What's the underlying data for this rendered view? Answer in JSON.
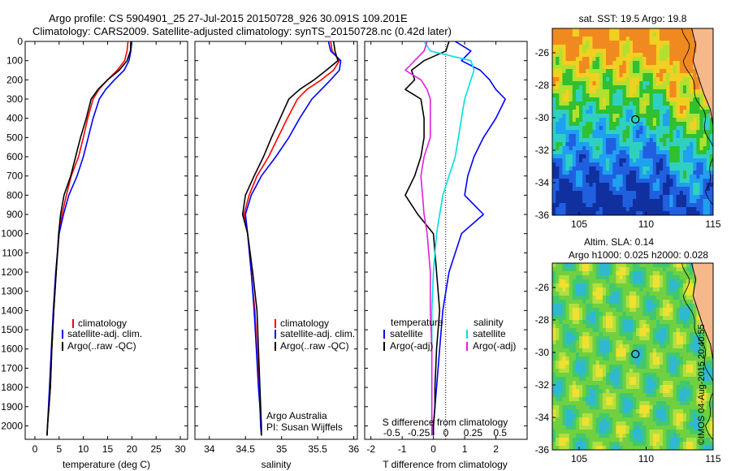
{
  "figure": {
    "title_line1": "Argo profile: CS 5904901_25 27-Jul-2015 20150728_926 30.091S 109.201E",
    "title_line2": "Climatology: CARS2009. Satellite-adjusted climatology: synTS_20150728.nc (0.42d later)",
    "footer": "©IMOS 04-Aug-2015 20:40:55",
    "credit_line1": "Argo Australia",
    "credit_line2": "PI: Susan Wijffels"
  },
  "colors": {
    "climatology": "#ff0000",
    "satellite": "#0000ff",
    "argo": "#000000",
    "satellite_salinity": "#00e0e0",
    "argo_salinity": "#e020e0"
  },
  "legends": {
    "temperature": [
      "climatology",
      "satellite-adj. clim.",
      "Argo(..raw -QC)"
    ],
    "salinity": [
      "climatology",
      "satellite-adj. clim.",
      "Argo(..raw -QC)"
    ],
    "difference_temperature": {
      "title": "temperature",
      "items": [
        "satellite",
        "Argo(-adj)"
      ]
    },
    "difference_salinity": {
      "title": "salinity",
      "items": [
        "satellite",
        "Argo(-adj)"
      ]
    }
  },
  "chart_data": [
    {
      "type": "line",
      "panel": "temperature",
      "xlabel": "temperature (deg C)",
      "ylabel": "",
      "xlim": [
        -2,
        31.5
      ],
      "ylim": [
        2070,
        0
      ],
      "xticks": [
        0,
        5,
        10,
        15,
        20,
        25,
        30
      ],
      "yticks": [
        0,
        100,
        200,
        300,
        400,
        500,
        600,
        700,
        800,
        900,
        1000,
        1100,
        1200,
        1300,
        1400,
        1500,
        1600,
        1700,
        1800,
        1900,
        2000
      ],
      "series": [
        {
          "name": "climatology",
          "color_key": "climatology",
          "x": [
            19.2,
            19.0,
            18.5,
            17.0,
            15.0,
            13.2,
            12.0,
            10.9,
            10.0,
            9.0,
            7.5,
            6.5,
            5.6,
            5.0,
            4.4,
            3.9,
            3.5,
            3.2,
            2.9,
            2.6,
            2.5
          ],
          "y": [
            0,
            50,
            100,
            150,
            200,
            250,
            300,
            400,
            500,
            600,
            700,
            800,
            900,
            1000,
            1200,
            1400,
            1600,
            1800,
            1900,
            2000,
            2050
          ]
        },
        {
          "name": "satellite-adj. clim.",
          "color_key": "satellite",
          "x": [
            20.0,
            19.8,
            19.4,
            18.4,
            16.4,
            14.6,
            13.3,
            12.0,
            11.0,
            10.0,
            8.7,
            7.0,
            5.9,
            5.0,
            4.3,
            3.8,
            3.4,
            3.0,
            2.8,
            2.6,
            2.5
          ],
          "y": [
            0,
            50,
            100,
            150,
            200,
            250,
            300,
            400,
            500,
            600,
            700,
            800,
            900,
            1000,
            1200,
            1400,
            1600,
            1800,
            1900,
            2000,
            2050
          ]
        },
        {
          "name": "Argo(..raw -QC)",
          "color_key": "argo",
          "x": [
            19.8,
            19.7,
            19.0,
            17.4,
            15.0,
            13.0,
            11.6,
            10.6,
            9.4,
            8.4,
            7.4,
            6.0,
            5.3,
            4.9,
            4.4,
            3.9,
            3.5,
            3.2,
            2.9,
            2.6,
            2.5
          ],
          "y": [
            0,
            50,
            100,
            150,
            200,
            250,
            300,
            400,
            500,
            600,
            700,
            800,
            900,
            1000,
            1200,
            1400,
            1600,
            1800,
            1900,
            2000,
            2050
          ]
        }
      ]
    },
    {
      "type": "line",
      "panel": "salinity",
      "xlabel": "salinity",
      "ylabel": "",
      "xlim": [
        33.8,
        36.05
      ],
      "ylim": [
        2070,
        0
      ],
      "xticks": [
        34,
        34.5,
        35,
        35.5,
        36
      ],
      "series": [
        {
          "name": "climatology",
          "color_key": "climatology",
          "x": [
            35.68,
            35.7,
            35.8,
            35.72,
            35.55,
            35.35,
            35.22,
            35.08,
            34.95,
            34.82,
            34.66,
            34.55,
            34.48,
            34.53,
            34.58,
            34.63,
            34.66,
            34.69,
            34.7,
            34.72,
            34.72
          ],
          "y": [
            0,
            50,
            100,
            150,
            200,
            250,
            300,
            400,
            500,
            600,
            700,
            800,
            900,
            1000,
            1200,
            1400,
            1600,
            1800,
            1900,
            2000,
            2050
          ]
        },
        {
          "name": "satellite-adj. clim.",
          "color_key": "satellite",
          "x": [
            35.65,
            35.68,
            35.82,
            35.8,
            35.68,
            35.55,
            35.42,
            35.25,
            35.1,
            34.92,
            34.72,
            34.58,
            34.5,
            34.53,
            34.58,
            34.62,
            34.65,
            34.68,
            34.7,
            34.71,
            34.72
          ],
          "y": [
            0,
            50,
            100,
            150,
            200,
            250,
            300,
            400,
            500,
            600,
            700,
            800,
            900,
            1000,
            1200,
            1400,
            1600,
            1800,
            1900,
            2000,
            2050
          ]
        },
        {
          "name": "Argo(..raw -QC)",
          "color_key": "argo",
          "x": [
            35.72,
            35.74,
            35.78,
            35.62,
            35.45,
            35.25,
            35.1,
            34.98,
            34.86,
            34.75,
            34.62,
            34.5,
            34.46,
            34.53,
            34.6,
            34.66,
            34.68,
            34.7,
            34.71,
            34.72,
            34.72
          ],
          "y": [
            0,
            50,
            100,
            150,
            200,
            250,
            300,
            400,
            500,
            600,
            700,
            800,
            900,
            1000,
            1200,
            1400,
            1600,
            1800,
            1900,
            2000,
            2050
          ]
        }
      ]
    },
    {
      "type": "line",
      "panel": "difference",
      "xlabel": "T difference from climatology",
      "x2label": "S difference from climatology",
      "xlim": [
        -2.2,
        3.0
      ],
      "ylim": [
        2070,
        0
      ],
      "xticks": [
        -2,
        -1,
        0,
        1,
        2
      ],
      "x2ticks": [
        -0.5,
        -0.25,
        0,
        0.25,
        0.5
      ],
      "x2tick_labels": [
        "-0.5",
        "-0.25",
        "0",
        "0.25",
        "0.5"
      ],
      "series": [
        {
          "name": "satellite",
          "variable": "temperature",
          "color_key": "satellite",
          "x": [
            0.7,
            1.2,
            0.9,
            1.5,
            1.8,
            2.0,
            2.3,
            2.0,
            1.6,
            1.3,
            1.1,
            1.0,
            1.6,
            0.9,
            0.5,
            0.3,
            0.2,
            0.1,
            0.05,
            0.0,
            0.0
          ],
          "y": [
            0,
            50,
            100,
            150,
            200,
            250,
            300,
            400,
            500,
            600,
            700,
            800,
            900,
            1000,
            1200,
            1400,
            1600,
            1800,
            1900,
            2000,
            2050
          ]
        },
        {
          "name": "Argo(-adj)",
          "variable": "temperature",
          "color_key": "argo",
          "x": [
            0.5,
            0.4,
            -0.3,
            -0.7,
            -0.6,
            -0.9,
            -0.4,
            -0.3,
            -0.3,
            -0.4,
            -0.6,
            -0.9,
            -0.5,
            0.0,
            0.1,
            0.2,
            0.1,
            0.05,
            0.05,
            0.0,
            0.0
          ],
          "y": [
            0,
            50,
            100,
            150,
            200,
            250,
            300,
            400,
            500,
            600,
            700,
            800,
            900,
            1000,
            1200,
            1400,
            1600,
            1800,
            1900,
            2000,
            2050
          ]
        },
        {
          "name": "satellite",
          "variable": "salinity",
          "color_key": "satellite_salinity",
          "x": [
            -0.3,
            -0.1,
            1.2,
            1.3,
            1.2,
            1.1,
            1.0,
            0.9,
            0.8,
            0.7,
            0.5,
            0.3,
            0.2,
            0.1,
            0.0,
            -0.05,
            -0.05,
            -0.05,
            -0.05,
            -0.05,
            -0.05
          ],
          "y": [
            0,
            50,
            100,
            150,
            200,
            250,
            300,
            400,
            500,
            600,
            700,
            800,
            900,
            1000,
            1200,
            1400,
            1600,
            1800,
            1900,
            2000,
            2050
          ]
        },
        {
          "name": "Argo(-adj)",
          "variable": "salinity",
          "color_key": "argo_salinity",
          "x": [
            -0.2,
            -0.3,
            -0.6,
            -0.9,
            -0.4,
            -0.2,
            -0.1,
            -0.1,
            -0.1,
            -0.3,
            -0.4,
            -0.35,
            -0.3,
            -0.2,
            -0.1,
            -0.1,
            -0.05,
            -0.05,
            -0.05,
            -0.05,
            -0.05
          ],
          "y": [
            0,
            50,
            100,
            150,
            200,
            250,
            300,
            400,
            500,
            600,
            700,
            800,
            900,
            1000,
            1200,
            1400,
            1600,
            1800,
            1900,
            2000,
            2050
          ]
        }
      ]
    },
    {
      "type": "heatmap",
      "panel": "map_sst",
      "title": "sat. SST: 19.5 Argo: 19.8",
      "xlim": [
        103,
        115
      ],
      "ylim": [
        -36,
        -24.5
      ],
      "xticks": [
        105,
        110,
        115
      ],
      "yticks": [
        -26,
        -28,
        -30,
        -32,
        -34,
        -36
      ],
      "marker": {
        "lon": 109.2,
        "lat": -30.1
      }
    },
    {
      "type": "heatmap",
      "panel": "map_sla",
      "title_line1": "Altim. SLA: 0.14",
      "title_line2": "Argo h1000: 0.025 h2000: 0.028",
      "xlim": [
        103,
        115
      ],
      "ylim": [
        -36,
        -24.5
      ],
      "xticks": [
        105,
        110,
        115
      ],
      "yticks": [
        -26,
        -28,
        -30,
        -32,
        -34,
        -36
      ],
      "marker": {
        "lon": 109.2,
        "lat": -30.1
      }
    }
  ]
}
